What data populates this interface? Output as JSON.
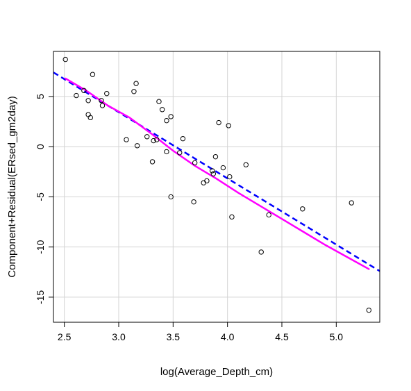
{
  "chart_data": {
    "type": "scatter",
    "title": "",
    "xlabel": "log(Average_Depth_cm)",
    "ylabel": "Component+Residual(ERsed_gm2day)",
    "xlim": [
      2.4,
      5.4
    ],
    "ylim": [
      -17.5,
      9.5
    ],
    "xticks": [
      "2.5",
      "3.0",
      "3.5",
      "4.0",
      "4.5",
      "5.0"
    ],
    "yticks": [
      "-15",
      "-10",
      "-5",
      "0",
      "5"
    ],
    "grid": true,
    "colors": {
      "points": "#000000",
      "linear_fit": "#0000ff",
      "smooth_fit": "#ff00ff",
      "grid": "#d3d3d3"
    },
    "points": [
      {
        "x": 2.51,
        "y": 8.7
      },
      {
        "x": 2.61,
        "y": 5.1
      },
      {
        "x": 2.68,
        "y": 5.6
      },
      {
        "x": 2.72,
        "y": 4.6
      },
      {
        "x": 2.72,
        "y": 3.2
      },
      {
        "x": 2.74,
        "y": 2.9
      },
      {
        "x": 2.76,
        "y": 7.2
      },
      {
        "x": 2.84,
        "y": 4.6
      },
      {
        "x": 2.85,
        "y": 4.1
      },
      {
        "x": 2.89,
        "y": 5.3
      },
      {
        "x": 3.07,
        "y": 0.7
      },
      {
        "x": 3.14,
        "y": 5.5
      },
      {
        "x": 3.16,
        "y": 6.3
      },
      {
        "x": 3.17,
        "y": 0.1
      },
      {
        "x": 3.26,
        "y": 1.0
      },
      {
        "x": 3.31,
        "y": -1.5
      },
      {
        "x": 3.32,
        "y": 0.6
      },
      {
        "x": 3.35,
        "y": 0.7
      },
      {
        "x": 3.37,
        "y": 4.5
      },
      {
        "x": 3.4,
        "y": 3.7
      },
      {
        "x": 3.44,
        "y": -0.5
      },
      {
        "x": 3.44,
        "y": 2.6
      },
      {
        "x": 3.48,
        "y": 3.0
      },
      {
        "x": 3.48,
        "y": -5.0
      },
      {
        "x": 3.56,
        "y": -0.6
      },
      {
        "x": 3.59,
        "y": 0.8
      },
      {
        "x": 3.69,
        "y": -5.5
      },
      {
        "x": 3.7,
        "y": -1.6
      },
      {
        "x": 3.78,
        "y": -3.6
      },
      {
        "x": 3.81,
        "y": -3.4
      },
      {
        "x": 3.86,
        "y": -2.4
      },
      {
        "x": 3.87,
        "y": -2.7
      },
      {
        "x": 3.89,
        "y": -1.0
      },
      {
        "x": 3.92,
        "y": 2.4
      },
      {
        "x": 3.96,
        "y": -2.1
      },
      {
        "x": 4.01,
        "y": 2.1
      },
      {
        "x": 4.02,
        "y": -3.0
      },
      {
        "x": 4.04,
        "y": -7.0
      },
      {
        "x": 4.17,
        "y": -1.8
      },
      {
        "x": 4.31,
        "y": -10.5
      },
      {
        "x": 4.38,
        "y": -6.8
      },
      {
        "x": 4.69,
        "y": -6.2
      },
      {
        "x": 5.14,
        "y": -5.6
      },
      {
        "x": 5.3,
        "y": -16.3
      }
    ],
    "linear_fit": {
      "x": [
        2.4,
        5.4
      ],
      "y": [
        7.4,
        -12.4
      ]
    },
    "smooth_fit": {
      "x": [
        2.51,
        2.7,
        2.9,
        3.1,
        3.3,
        3.5,
        3.7,
        3.9,
        4.1,
        4.3,
        4.5,
        4.7,
        4.9,
        5.1,
        5.3
      ],
      "y": [
        6.8,
        5.6,
        4.1,
        2.9,
        1.3,
        -0.4,
        -1.9,
        -3.2,
        -4.6,
        -5.9,
        -7.2,
        -8.5,
        -9.8,
        -11.0,
        -12.2
      ]
    }
  }
}
